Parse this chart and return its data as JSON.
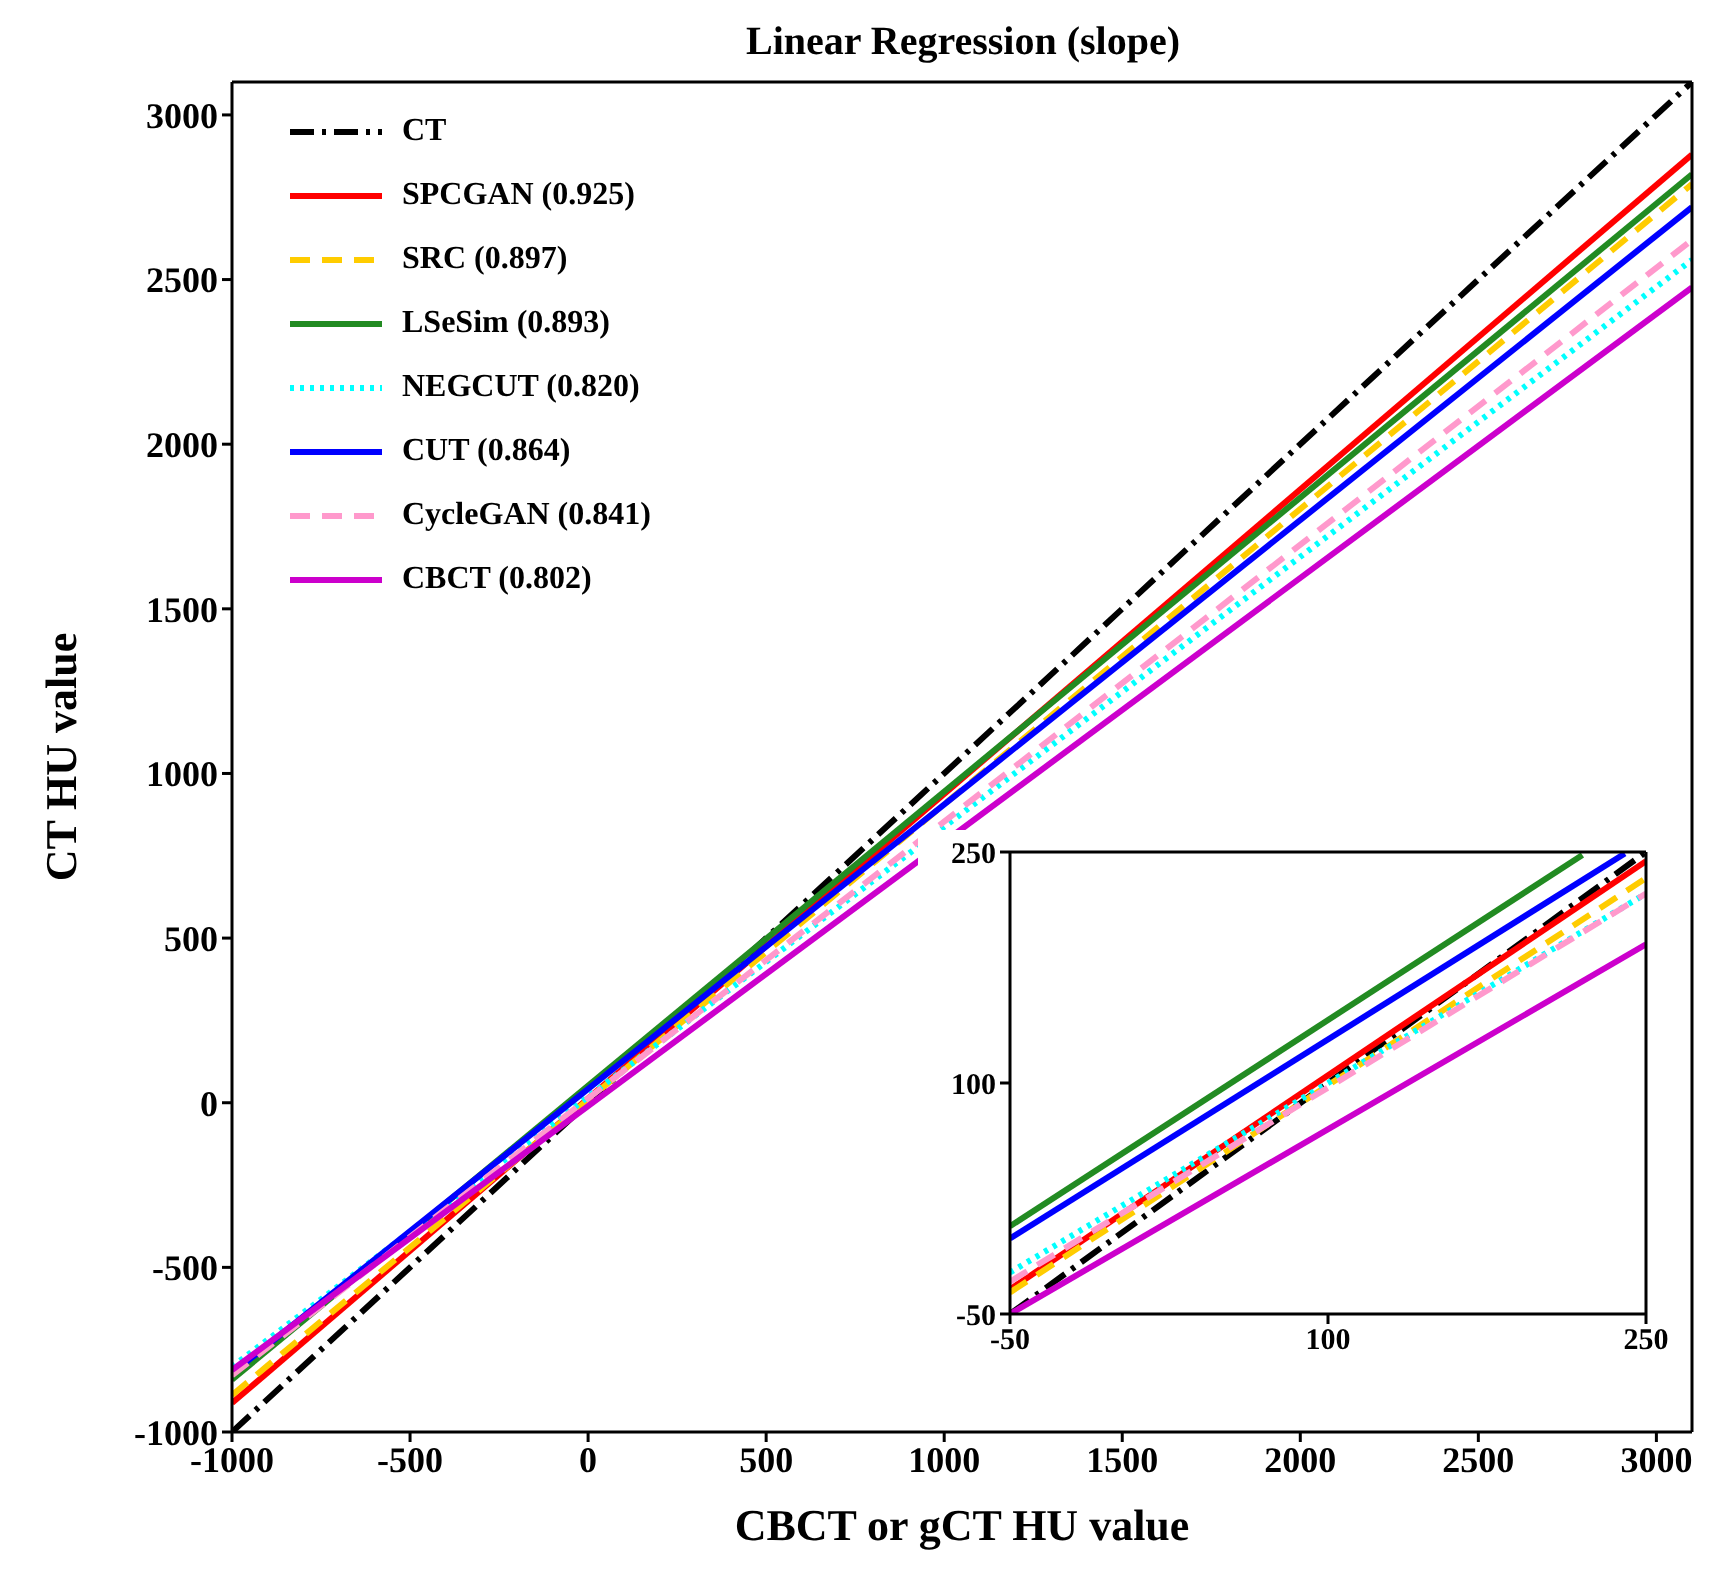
{
  "chart_data": [
    {
      "type": "line",
      "title": "Linear Regression (slope)",
      "xlabel": "CBCT or gCT HU value",
      "ylabel": "CT HU value",
      "xlim": [
        -1000,
        3100
      ],
      "ylim": [
        -1000,
        3100
      ],
      "xticks": [
        -1000,
        -500,
        0,
        500,
        1000,
        1500,
        2000,
        2500,
        3000
      ],
      "yticks": [
        -1000,
        -500,
        0,
        500,
        1000,
        1500,
        2000,
        2500,
        3000
      ],
      "legend": "top left",
      "marker": "none",
      "series": [
        {
          "name": "CT",
          "color": "#000000",
          "line_style": "dashdot",
          "x": [
            -1000,
            3100
          ],
          "values": [
            -1000,
            3100
          ]
        },
        {
          "name": "SPCGAN (0.925)",
          "color": "#ff0000",
          "line_style": "solid",
          "x": [
            -1000,
            3100
          ],
          "values": [
            -912,
            2880
          ]
        },
        {
          "name": "SRC (0.897)",
          "color": "#ffcc00",
          "line_style": "dashed",
          "x": [
            -1000,
            3100
          ],
          "values": [
            -888,
            2790
          ]
        },
        {
          "name": "LSeSim (0.893)",
          "color": "#228b22",
          "line_style": "solid",
          "x": [
            -1000,
            3100
          ],
          "values": [
            -841,
            2820
          ]
        },
        {
          "name": "NEGCUT (0.820)",
          "color": "#00ffff",
          "line_style": "dotted",
          "x": [
            -1000,
            3100
          ],
          "values": [
            -802,
            2560
          ]
        },
        {
          "name": "CUT (0.864)",
          "color": "#0000ff",
          "line_style": "solid",
          "x": [
            -1000,
            3100
          ],
          "values": [
            -822,
            2720
          ]
        },
        {
          "name": "CycleGAN (0.841)",
          "color": "#ff99cc",
          "line_style": "dashed",
          "x": [
            -1000,
            3100
          ],
          "values": [
            -828,
            2620
          ]
        },
        {
          "name": "CBCT (0.802)",
          "color": "#cc00cc",
          "line_style": "solid",
          "x": [
            -1000,
            3100
          ],
          "values": [
            -812,
            2476
          ]
        }
      ]
    },
    {
      "type": "line",
      "xlim": [
        -50,
        250
      ],
      "ylim": [
        -50,
        250
      ],
      "xticks": [
        -50,
        100,
        250
      ],
      "yticks": [
        -50,
        100,
        250
      ],
      "marker": "none",
      "series": [
        {
          "color": "#000000",
          "line_style": "dashdot",
          "x": [
            -50,
            250
          ],
          "values": [
            -50,
            250
          ]
        },
        {
          "color": "#ff0000",
          "line_style": "solid",
          "x": [
            -50,
            250
          ],
          "values": [
            -34,
            244
          ]
        },
        {
          "color": "#ffcc00",
          "line_style": "dashed",
          "x": [
            -50,
            250
          ],
          "values": [
            -36,
            233
          ]
        },
        {
          "color": "#228b22",
          "line_style": "solid",
          "x": [
            -50,
            220
          ],
          "values": [
            7,
            248
          ]
        },
        {
          "color": "#00ffff",
          "line_style": "dotted",
          "x": [
            -50,
            250
          ],
          "values": [
            -23,
            223
          ]
        },
        {
          "color": "#0000ff",
          "line_style": "solid",
          "x": [
            -50,
            240
          ],
          "values": [
            -1,
            249
          ]
        },
        {
          "color": "#ff99cc",
          "line_style": "dashed",
          "x": [
            -50,
            250
          ],
          "values": [
            -29,
            223
          ]
        },
        {
          "color": "#cc00cc",
          "line_style": "solid",
          "x": [
            -50,
            250
          ],
          "values": [
            -50,
            190
          ]
        }
      ]
    }
  ]
}
